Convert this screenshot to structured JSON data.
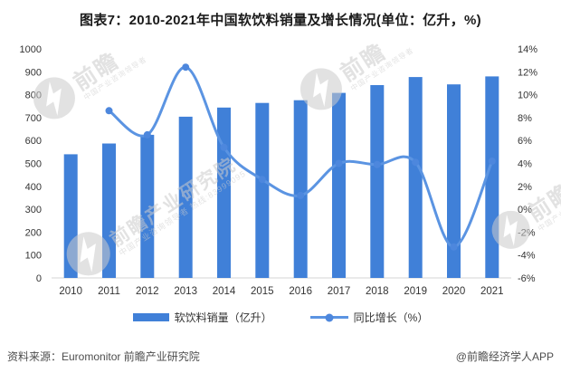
{
  "title": "图表7：2010-2021年中国软饮料销量及增长情况(单位：亿升，%)",
  "colors": {
    "bar": "#4080d8",
    "line": "#5b94e2",
    "marker": "#4d87dd",
    "axis_text": "#333333",
    "axis_line": "#d4d4d4",
    "title_text": "#1a1a1a",
    "footer_text": "#4d4d4d",
    "watermark": "#cccccc"
  },
  "chart_data": {
    "type": "bar",
    "subtype": "bar-line-combo",
    "categories": [
      "2010",
      "2011",
      "2012",
      "2013",
      "2014",
      "2015",
      "2016",
      "2017",
      "2018",
      "2019",
      "2020",
      "2021"
    ],
    "series": [
      {
        "name": "软饮料销量（亿升）",
        "type": "bar",
        "axis": "left",
        "values": [
          540,
          587,
          625,
          704,
          744,
          764,
          776,
          808,
          842,
          877,
          845,
          880
        ]
      },
      {
        "name": "同比增长（%）",
        "type": "line",
        "axis": "right",
        "values": [
          null,
          8.6,
          6.5,
          12.4,
          5.4,
          2.6,
          1.2,
          4.0,
          3.9,
          4.1,
          -3.3,
          4.2
        ]
      }
    ],
    "left_axis": {
      "min": 0,
      "max": 1000,
      "step": 100
    },
    "right_axis": {
      "min": -6,
      "max": 14,
      "step": 2,
      "suffix": "%"
    },
    "grid": false,
    "legend_position": "bottom",
    "title": "图表7：2010-2021年中国软饮料销量及增长情况(单位：亿升，%)"
  },
  "footer": {
    "source": "资料来源：Euromonitor 前瞻产业研究院",
    "credit": "@前瞻经济学人APP"
  },
  "watermark": {
    "brand": "前瞻",
    "brand_full": "前瞻产业研究院",
    "tagline": "中国产业咨询领导者",
    "hotline": "热线:83999095"
  }
}
